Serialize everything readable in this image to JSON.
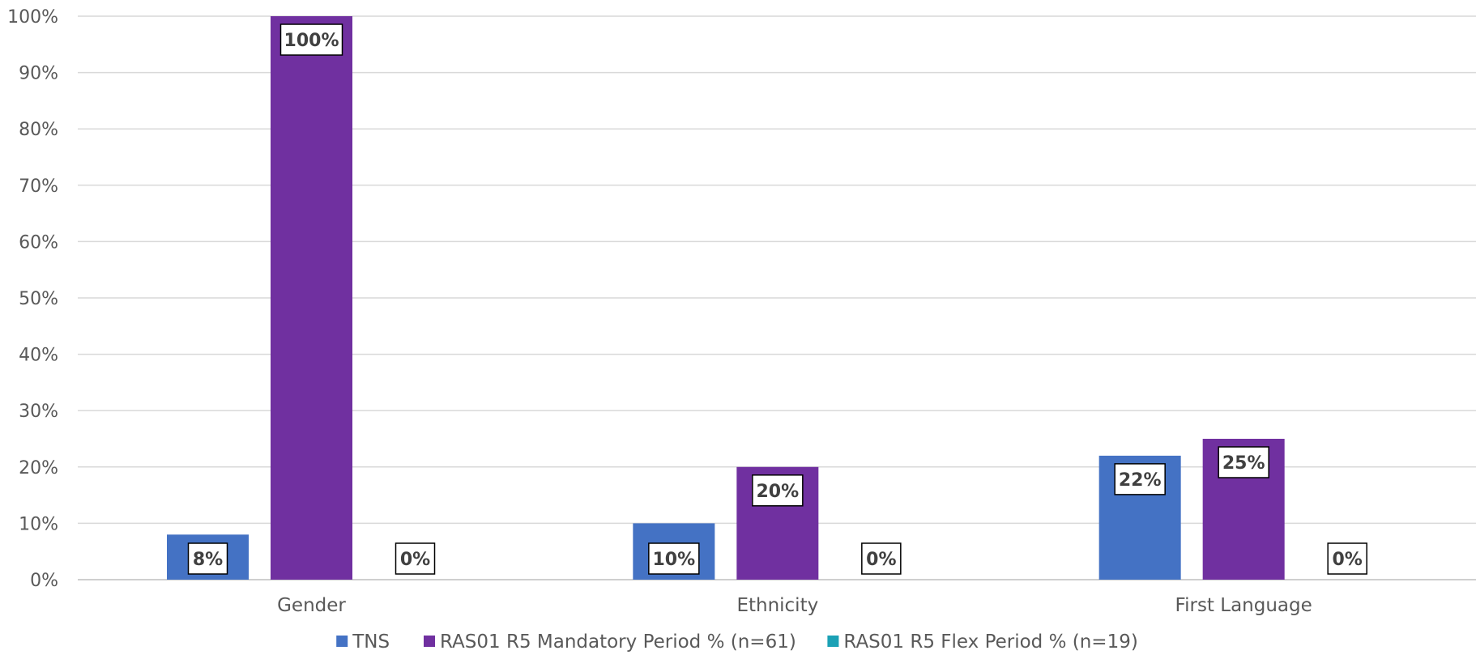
{
  "chart_data": {
    "type": "bar",
    "categories": [
      "Gender",
      "Ethnicity",
      "First Language"
    ],
    "series": [
      {
        "name": "TNS",
        "values": [
          8,
          10,
          22
        ],
        "labels": [
          "8%",
          "10%",
          "22%"
        ],
        "color": "#4472C4"
      },
      {
        "name": "RAS01 R5 Mandatory Period % (n=61)",
        "values": [
          100,
          20,
          25
        ],
        "labels": [
          "100%",
          "20%",
          "25%"
        ],
        "color": "#7030A0"
      },
      {
        "name": "RAS01 R5 Flex Period % (n=19)",
        "values": [
          0,
          0,
          0
        ],
        "labels": [
          "0%",
          "0%",
          "0%"
        ],
        "color": "#1BA1B5"
      }
    ],
    "ylim": [
      0,
      100
    ],
    "yticks": [
      "0%",
      "10%",
      "20%",
      "30%",
      "40%",
      "50%",
      "60%",
      "70%",
      "80%",
      "90%",
      "100%"
    ],
    "grid": true,
    "legend_position": "bottom",
    "title": "",
    "xlabel": "",
    "ylabel": ""
  }
}
